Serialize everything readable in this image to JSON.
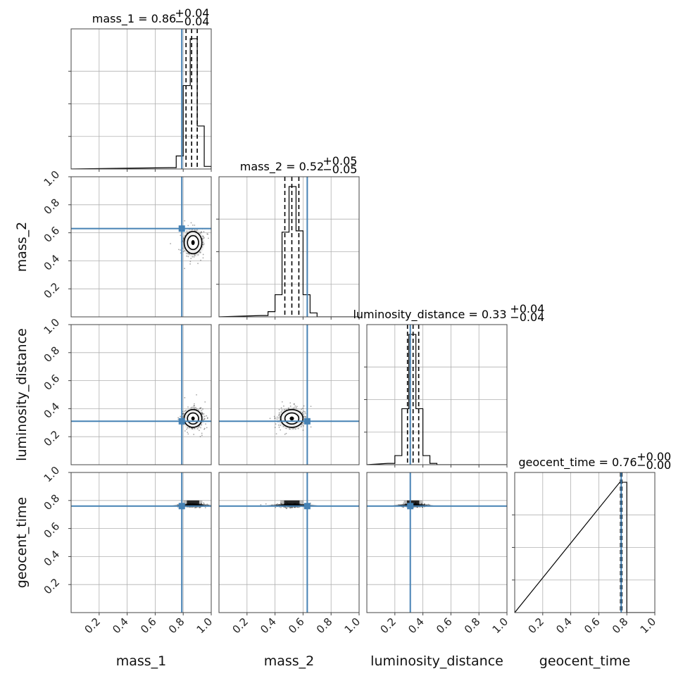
{
  "chart_data": {
    "type": "corner",
    "parameters": [
      "mass_1",
      "mass_2",
      "luminosity_distance",
      "geocent_time"
    ],
    "axis_range": [
      0,
      1
    ],
    "ticks": [
      0.2,
      0.4,
      0.6,
      0.8,
      1.0
    ],
    "tick_labels": [
      "0.2",
      "0.4",
      "0.6",
      "0.8",
      "1.0"
    ],
    "grid": true,
    "truth_color": "#4682b4",
    "truths": {
      "mass_1": 0.79,
      "mass_2": 0.63,
      "luminosity_distance": 0.31,
      "geocent_time": 0.76
    },
    "titles": [
      {
        "param": "mass_1",
        "prefix": "mass_1 = 0.86",
        "plus": "+0.04",
        "minus": "−0.04",
        "median": 0.86,
        "err_plus": 0.04,
        "err_minus": 0.04
      },
      {
        "param": "mass_2",
        "prefix": "mass_2 = 0.52",
        "plus": "+0.05",
        "minus": "−0.05",
        "median": 0.52,
        "err_plus": 0.05,
        "err_minus": 0.05
      },
      {
        "param": "luminosity_distance",
        "prefix": "luminosity_distance = 0.33",
        "plus": "+0.04",
        "minus": "−0.04",
        "median": 0.33,
        "err_plus": 0.04,
        "err_minus": 0.04
      },
      {
        "param": "geocent_time",
        "prefix": "geocent_time = 0.76",
        "plus": "+0.00",
        "minus": "−0.00",
        "median": 0.76,
        "err_plus": 0.0,
        "err_minus": 0.0
      }
    ],
    "histograms": [
      {
        "param": "mass_1",
        "bins": [
          [
            0.7,
            0.75,
            0.01
          ],
          [
            0.75,
            0.8,
            0.1
          ],
          [
            0.8,
            0.85,
            0.64
          ],
          [
            0.85,
            0.9,
            1.0
          ],
          [
            0.9,
            0.95,
            0.33
          ],
          [
            0.95,
            1.0,
            0.02
          ]
        ],
        "quantiles": [
          0.82,
          0.86,
          0.9
        ]
      },
      {
        "param": "mass_2",
        "bins": [
          [
            0.3,
            0.35,
            0.01
          ],
          [
            0.35,
            0.4,
            0.04
          ],
          [
            0.4,
            0.45,
            0.17
          ],
          [
            0.45,
            0.5,
            0.65
          ],
          [
            0.5,
            0.55,
            1.0
          ],
          [
            0.55,
            0.6,
            0.66
          ],
          [
            0.6,
            0.65,
            0.17
          ],
          [
            0.65,
            0.7,
            0.03
          ]
        ],
        "quantiles": [
          0.47,
          0.52,
          0.57
        ]
      },
      {
        "param": "luminosity_distance",
        "bins": [
          [
            0.15,
            0.2,
            0.01
          ],
          [
            0.2,
            0.25,
            0.07
          ],
          [
            0.25,
            0.3,
            0.43
          ],
          [
            0.3,
            0.35,
            1.0
          ],
          [
            0.35,
            0.4,
            0.43
          ],
          [
            0.4,
            0.45,
            0.07
          ],
          [
            0.45,
            0.5,
            0.01
          ]
        ],
        "quantiles": [
          0.29,
          0.33,
          0.37
        ]
      },
      {
        "param": "geocent_time",
        "bins": [
          [
            0.75,
            0.8,
            1.0
          ]
        ],
        "quantiles": [
          0.755,
          0.76,
          0.765
        ]
      }
    ],
    "density_centers": {
      "mass_1|mass_2": [
        0.87,
        0.53
      ],
      "mass_1|luminosity_distance": [
        0.87,
        0.33
      ],
      "mass_2|luminosity_distance": [
        0.52,
        0.33
      ],
      "mass_1|geocent_time": [
        0.87,
        0.765
      ],
      "mass_2|geocent_time": [
        0.52,
        0.765
      ],
      "luminosity_distance|geocent_time": [
        0.33,
        0.765
      ]
    },
    "spreads": {
      "mass_1": 0.04,
      "mass_2": 0.05,
      "luminosity_distance": 0.04,
      "geocent_time": 0.004
    }
  }
}
